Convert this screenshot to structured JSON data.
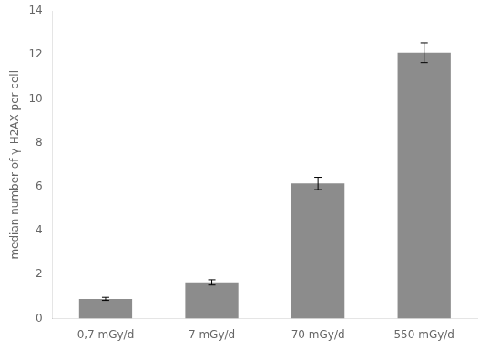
{
  "chart_data": {
    "type": "bar",
    "categories": [
      "0,7 mGy/d",
      "7 mGy/d",
      "70 mGy/d",
      "550 mGy/d"
    ],
    "values": [
      0.9,
      1.65,
      6.15,
      12.1
    ],
    "errors": [
      0.07,
      0.12,
      0.28,
      0.45
    ],
    "color": "#8c8c8c",
    "ylabel": "median number of γ-H2AX per cell",
    "ylim": [
      0,
      14
    ],
    "yticks": [
      0,
      2,
      4,
      6,
      8,
      10,
      12,
      14
    ],
    "grid": false
  }
}
